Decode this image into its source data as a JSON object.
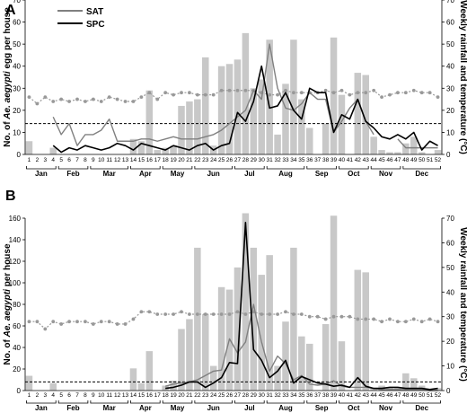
{
  "figure": {
    "rain_color": "#c8c8c8",
    "temp_color": "#999999",
    "sat_color": "#808080",
    "spc_color": "#000000",
    "threshold_color": "#000000"
  },
  "chart_data": [
    {
      "panel_label": "A",
      "type": "bar+line",
      "legend": {
        "position": "top-left",
        "entries": [
          "SAT",
          "SPC"
        ]
      },
      "ylabel_left_prefix": "No. of ",
      "ylabel_left_species": "Ae. aegypti",
      "ylabel_left_suffix": " egg per house",
      "ylabel_right": "Weekly rainfall and temperature (°C)",
      "ylim_left": [
        0,
        70
      ],
      "ylim_right": [
        0,
        70
      ],
      "yticks_left": [
        0,
        10,
        20,
        30,
        40,
        50,
        60,
        70
      ],
      "yticks_right": [
        0,
        10,
        20,
        30,
        40,
        50,
        60,
        70
      ],
      "weeks": [
        1,
        2,
        3,
        4,
        5,
        6,
        7,
        8,
        9,
        10,
        11,
        12,
        13,
        14,
        15,
        16,
        17,
        18,
        19,
        20,
        21,
        22,
        23,
        24,
        25,
        26,
        27,
        28,
        29,
        30,
        31,
        32,
        33,
        34,
        35,
        36,
        37,
        38,
        39,
        40,
        41,
        42,
        43,
        44,
        45,
        46,
        47,
        48,
        49,
        50,
        51,
        52
      ],
      "months": [
        "Jan",
        "Feb",
        "Mar",
        "Apr",
        "May",
        "Jun",
        "Jul",
        "Aug",
        "Sep",
        "Oct",
        "Nov",
        "Dec"
      ],
      "month_start_weeks": [
        1,
        5,
        9,
        14,
        18,
        22,
        27,
        31,
        36,
        40,
        44,
        48
      ],
      "rainfall": [
        6,
        0,
        0,
        3,
        0,
        0,
        0,
        0,
        0,
        0,
        0,
        0,
        0,
        7,
        6,
        29,
        2,
        3,
        4,
        22,
        24,
        25,
        44,
        4,
        40,
        41,
        43,
        55,
        30,
        34,
        52,
        9,
        32,
        52,
        25,
        12,
        0,
        14,
        53,
        27,
        0,
        37,
        36,
        8,
        2,
        1,
        1,
        5,
        8,
        1,
        0,
        2
      ],
      "temperature": [
        26,
        23,
        26,
        24,
        25,
        24,
        25,
        24,
        25,
        24,
        26,
        25,
        24,
        24,
        26,
        28,
        25,
        28,
        27,
        28,
        28,
        27,
        27,
        27,
        29,
        29,
        29,
        29,
        29,
        28,
        27,
        27,
        29,
        28,
        28,
        28,
        28,
        29,
        28,
        29,
        27,
        28,
        28,
        29,
        26,
        27,
        28,
        28,
        29,
        28,
        28,
        26
      ],
      "series": [
        {
          "name": "SAT",
          "values": [
            null,
            null,
            null,
            17,
            9,
            14,
            4,
            9,
            9,
            11,
            16,
            6,
            6,
            6,
            7,
            7,
            6,
            7,
            8,
            7,
            7,
            7,
            8,
            9,
            11,
            14,
            17,
            20,
            29,
            25,
            50,
            30,
            21,
            20,
            23,
            28,
            25,
            25,
            10,
            15,
            21,
            25,
            15,
            9,
            null,
            null,
            7,
            3,
            3,
            3,
            3,
            3
          ]
        },
        {
          "name": "SPC",
          "values": [
            null,
            null,
            null,
            4,
            1,
            3,
            2,
            4,
            3,
            2,
            3,
            5,
            4,
            2,
            5,
            4,
            3,
            2,
            4,
            3,
            2,
            4,
            5,
            2,
            4,
            5,
            19,
            15,
            24,
            40,
            21,
            22,
            28,
            20,
            16,
            30,
            28,
            28,
            10,
            18,
            16,
            25,
            15,
            12,
            8,
            7,
            9,
            7,
            10,
            2,
            6,
            4
          ]
        }
      ],
      "threshold": 14
    },
    {
      "panel_label": "B",
      "type": "bar+line",
      "ylabel_left_prefix": "No. of ",
      "ylabel_left_species": "Ae. aegypti",
      "ylabel_left_suffix": " per house",
      "ylabel_right": "Weekly rainfall and temperature (°C)",
      "ylim_left": [
        0,
        160
      ],
      "ylim_right": [
        0,
        70
      ],
      "yticks_left": [
        0,
        20,
        40,
        60,
        80,
        100,
        120,
        140,
        160
      ],
      "yticks_right": [
        0,
        10,
        20,
        30,
        40,
        50,
        60,
        70
      ],
      "weeks": [
        1,
        2,
        3,
        4,
        5,
        6,
        7,
        8,
        9,
        10,
        11,
        12,
        13,
        14,
        15,
        16,
        17,
        18,
        19,
        20,
        21,
        22,
        23,
        24,
        25,
        26,
        27,
        28,
        29,
        30,
        31,
        32,
        33,
        34,
        35,
        36,
        37,
        38,
        39,
        40,
        41,
        42,
        43,
        44,
        45,
        46,
        47,
        48,
        49,
        50,
        51,
        52
      ],
      "months": [
        "Jan",
        "Feb",
        "Mar",
        "Apr",
        "May",
        "Jun",
        "Jul",
        "Aug",
        "Sep",
        "Oct",
        "Nov",
        "Dec"
      ],
      "month_start_weeks": [
        1,
        5,
        9,
        14,
        18,
        22,
        27,
        31,
        36,
        40,
        44,
        48
      ],
      "rainfall": [
        6,
        0,
        0,
        3,
        0,
        0,
        0,
        0,
        0,
        0,
        0,
        0,
        0,
        9,
        3,
        16,
        0,
        2,
        4,
        25,
        29,
        58,
        31,
        10,
        42,
        41,
        50,
        72,
        58,
        47,
        55,
        10,
        28,
        58,
        22,
        19,
        0,
        27,
        71,
        20,
        0,
        49,
        48,
        1,
        2,
        1,
        1,
        7,
        5,
        2,
        0,
        1
      ],
      "temperature": [
        28,
        28,
        25,
        28,
        27,
        28,
        28,
        28,
        27,
        28,
        28,
        27,
        27,
        29,
        32,
        32,
        31,
        31,
        31,
        32,
        31,
        31,
        31,
        31,
        31,
        31,
        32,
        31,
        32,
        31,
        31,
        31,
        32,
        31,
        31,
        30,
        30,
        29,
        30,
        30,
        30,
        29,
        29,
        29,
        28,
        29,
        28,
        28,
        29,
        28,
        29,
        28
      ],
      "series": [
        {
          "name": "SAT",
          "values": [
            null,
            null,
            null,
            null,
            null,
            null,
            null,
            null,
            null,
            null,
            null,
            null,
            null,
            null,
            null,
            null,
            null,
            4,
            6,
            7,
            8,
            10,
            14,
            18,
            19,
            48,
            35,
            45,
            80,
            45,
            18,
            32,
            25,
            10,
            14,
            6,
            5,
            6,
            9,
            4,
            3,
            3,
            3,
            2,
            1,
            1,
            1,
            1,
            1,
            1,
            0,
            0
          ]
        },
        {
          "name": "SPC",
          "values": [
            null,
            null,
            null,
            null,
            null,
            null,
            null,
            null,
            null,
            null,
            null,
            null,
            null,
            null,
            null,
            null,
            null,
            2,
            3,
            5,
            8,
            8,
            3,
            7,
            12,
            26,
            25,
            156,
            38,
            28,
            12,
            18,
            28,
            7,
            13,
            10,
            7,
            6,
            4,
            5,
            3,
            12,
            4,
            2,
            2,
            3,
            3,
            2,
            2,
            2,
            1,
            2
          ]
        }
      ],
      "threshold": 8
    }
  ]
}
